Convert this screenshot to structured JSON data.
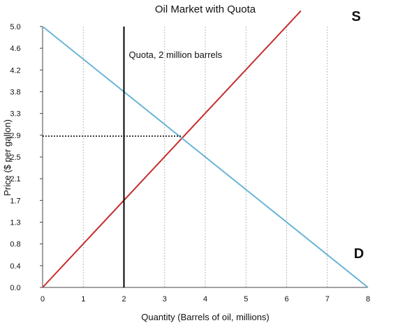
{
  "chart_data": {
    "type": "line",
    "title": "Oil Market with Quota",
    "xlabel": "Quantity (Barrels of oil, millions)",
    "ylabel": "Price ($ per gallon)",
    "xlim": [
      0,
      8
    ],
    "ylim": [
      0,
      5
    ],
    "x_ticks": [
      "0",
      "1",
      "2",
      "3",
      "4",
      "5",
      "6",
      "7",
      "8"
    ],
    "y_ticks": [
      "0.0",
      "0.4",
      "0.8",
      "1.3",
      "1.7",
      "2.1",
      "2.5",
      "2.9",
      "3.3",
      "3.8",
      "4.2",
      "4.6",
      "5.0"
    ],
    "grid": "vertical dotted",
    "series": [
      {
        "name": "S",
        "color": "#c62d2d",
        "points": [
          [
            0,
            0
          ],
          [
            6.35,
            5.3
          ]
        ]
      },
      {
        "name": "D",
        "color": "#6ab4d6",
        "points": [
          [
            0,
            5.0
          ],
          [
            8,
            0
          ]
        ]
      }
    ],
    "quota": {
      "x": 2,
      "label": "Quota, 2 million barrels",
      "color": "#000000"
    },
    "equilibrium_price_line": {
      "y": 2.9,
      "x_end": 3.4,
      "style": "dotted"
    }
  }
}
